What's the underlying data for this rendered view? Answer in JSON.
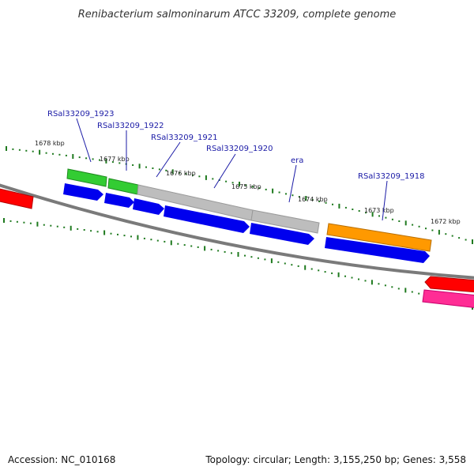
{
  "title": "Renibacterium salmoninarum ATCC 33209, complete genome",
  "footer": {
    "accession": "Accession: NC_010168",
    "summary": "Topology: circular; Length: 3,155,250 bp; Genes: 3,558"
  },
  "colors": {
    "backbone": "#808080",
    "tick": "#1f7a1f",
    "cds_forward": "#0000ee",
    "cds_other": "#0000ee",
    "rna_gray": "#b4b4b4",
    "green": "#33cc33",
    "orange": "#ff9900",
    "red": "#ff0000",
    "pink": "#ff2d95",
    "label": "#1a1aa6"
  },
  "kbp_labels": [
    "1678 kbp",
    "1677 kbp",
    "1676 kbp",
    "1675 kbp",
    "1674 kbp",
    "1673 kbp",
    "1672 kbp"
  ],
  "gene_labels": [
    "RSal33209_1923",
    "RSal33209_1922",
    "RSal33209_1921",
    "RSal33209_1920",
    "era",
    "RSal33209_1918"
  ]
}
